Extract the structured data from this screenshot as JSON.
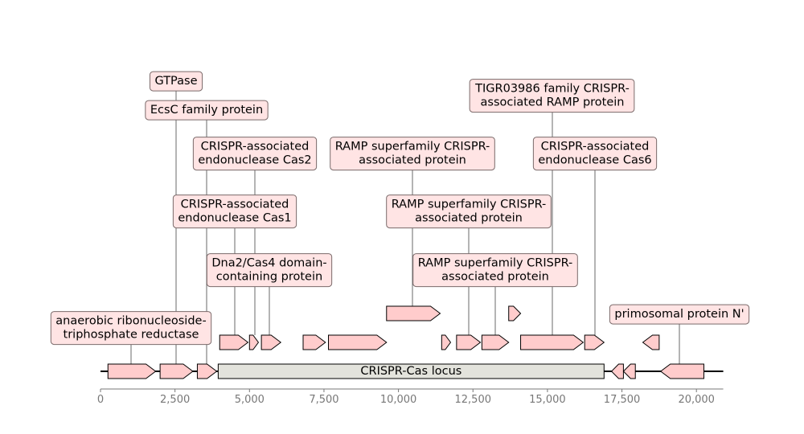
{
  "chart_data": {
    "type": "gene-map",
    "xlim": [
      0,
      21000
    ],
    "ticks": [
      0,
      2500,
      5000,
      7500,
      10000,
      12500,
      15000,
      17500,
      20000
    ],
    "tick_labels": [
      "0",
      "2,500",
      "5,000",
      "7,500",
      "10,000",
      "12,500",
      "15,000",
      "17,500",
      "20,000"
    ],
    "backbone": [
      0,
      20900
    ],
    "locus": {
      "label": "CRISPR-Cas locus",
      "start": 3950,
      "end": 16900
    },
    "genes": [
      {
        "id": "g1",
        "start": 250,
        "end": 1850,
        "strand": 1,
        "level": 0,
        "label": "anaerobic ribonucleoside-\ntriphosphate reductase"
      },
      {
        "id": "g2",
        "start": 2000,
        "end": 3100,
        "strand": 1,
        "level": 0,
        "label": "GTPase"
      },
      {
        "id": "g3",
        "start": 3250,
        "end": 3900,
        "strand": 1,
        "level": 0,
        "label": "EcsC family protein"
      },
      {
        "id": "g4",
        "start": 4000,
        "end": 4950,
        "strand": 1,
        "level": 1,
        "label": "CRISPR-associated\nendonuclease Cas1"
      },
      {
        "id": "g5",
        "start": 5000,
        "end": 5300,
        "strand": 1,
        "level": 1,
        "label": "CRISPR-associated\nendonuclease Cas2"
      },
      {
        "id": "g6",
        "start": 5400,
        "end": 6050,
        "strand": 1,
        "level": 1,
        "label": "Dna2/Cas4 domain-\ncontaining protein"
      },
      {
        "id": "g7",
        "start": 6800,
        "end": 7550,
        "strand": 1,
        "level": 1,
        "label": ""
      },
      {
        "id": "g8",
        "start": 7650,
        "end": 9600,
        "strand": 1,
        "level": 1,
        "label": ""
      },
      {
        "id": "g9",
        "start": 9600,
        "end": 11400,
        "strand": 1,
        "level": 2,
        "label": "RAMP superfamily CRISPR-\nassociated protein"
      },
      {
        "id": "g10",
        "start": 11450,
        "end": 11750,
        "strand": 1,
        "level": 1,
        "label": ""
      },
      {
        "id": "g11",
        "start": 11950,
        "end": 12750,
        "strand": 1,
        "level": 1,
        "label": "RAMP superfamily CRISPR-\nassociated protein"
      },
      {
        "id": "g12",
        "start": 12800,
        "end": 13700,
        "strand": 1,
        "level": 1,
        "label": "RAMP superfamily CRISPR-\nassociated protein"
      },
      {
        "id": "g13",
        "start": 13700,
        "end": 14100,
        "strand": 1,
        "level": 2,
        "label": ""
      },
      {
        "id": "g14",
        "start": 14100,
        "end": 16200,
        "strand": 1,
        "level": 1,
        "label": "TIGR03986 family CRISPR-\nassociated RAMP protein"
      },
      {
        "id": "g15",
        "start": 16250,
        "end": 16900,
        "strand": 1,
        "level": 1,
        "label": "CRISPR-associated\nendonuclease Cas6"
      },
      {
        "id": "g16",
        "start": 17150,
        "end": 17550,
        "strand": -1,
        "level": 0,
        "label": ""
      },
      {
        "id": "g17",
        "start": 17550,
        "end": 17950,
        "strand": -1,
        "level": 0,
        "label": ""
      },
      {
        "id": "g18",
        "start": 18200,
        "end": 18750,
        "strand": -1,
        "level": 1,
        "label": ""
      },
      {
        "id": "g19",
        "start": 18800,
        "end": 20250,
        "strand": -1,
        "level": 0,
        "label": "primosomal protein N'"
      }
    ]
  }
}
